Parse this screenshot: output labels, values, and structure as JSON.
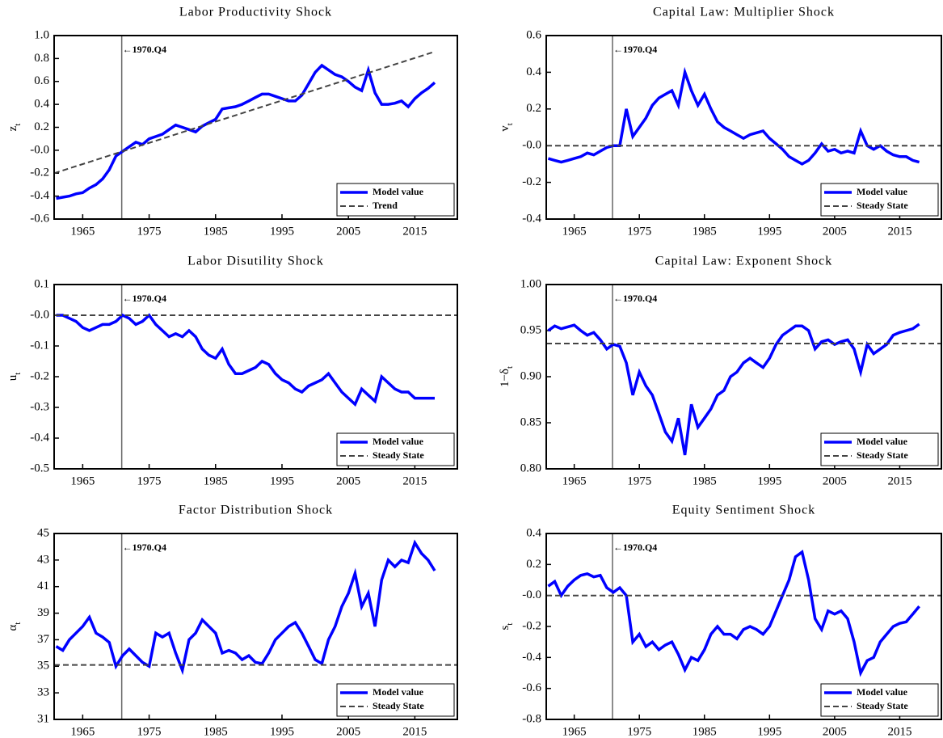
{
  "chart_data": [
    {
      "type": "line",
      "title": "Labor Productivity Shock",
      "ylabel": "z",
      "ylabel_sub": "t",
      "annotation": "←1970.Q4",
      "vline_x": 1970.875,
      "legend": "lower right",
      "xlim": [
        1960.7,
        2021.4
      ],
      "ylim": [
        -0.6,
        1.0
      ],
      "xticks": [
        1965,
        1975,
        1985,
        1995,
        2005,
        2015
      ],
      "yticks": [
        -0.6,
        -0.4,
        -0.2,
        {
          "value": 0,
          "label": "-0.0"
        },
        0.2,
        0.4,
        0.6,
        0.8,
        {
          "value": 1,
          "label": "1.0"
        }
      ],
      "series": [
        {
          "name": "Model value",
          "color": "#0000ff",
          "style": "solid",
          "x": [
            1961,
            1962,
            1963,
            1964,
            1965,
            1966,
            1967,
            1968,
            1969,
            1970,
            1971,
            1972,
            1973,
            1974,
            1975,
            1976,
            1977,
            1978,
            1979,
            1980,
            1981,
            1982,
            1983,
            1984,
            1985,
            1986,
            1987,
            1988,
            1989,
            1990,
            1991,
            1992,
            1993,
            1994,
            1995,
            1996,
            1997,
            1998,
            1999,
            2000,
            2001,
            2002,
            2003,
            2004,
            2005,
            2006,
            2007,
            2008,
            2009,
            2010,
            2011,
            2012,
            2013,
            2014,
            2015,
            2016,
            2017,
            2018
          ],
          "values": [
            -0.42,
            -0.41,
            -0.4,
            -0.38,
            -0.37,
            -0.33,
            -0.3,
            -0.25,
            -0.17,
            -0.05,
            -0.01,
            0.03,
            0.07,
            0.05,
            0.1,
            0.12,
            0.14,
            0.18,
            0.22,
            0.2,
            0.18,
            0.16,
            0.21,
            0.24,
            0.27,
            0.36,
            0.37,
            0.38,
            0.4,
            0.43,
            0.46,
            0.49,
            0.49,
            0.47,
            0.45,
            0.43,
            0.43,
            0.48,
            0.58,
            0.68,
            0.74,
            0.7,
            0.66,
            0.64,
            0.6,
            0.55,
            0.52,
            0.7,
            0.5,
            0.4,
            0.4,
            0.41,
            0.43,
            0.38,
            0.45,
            0.5,
            0.54,
            0.59
          ]
        },
        {
          "name": "Trend",
          "color": "#444444",
          "style": "dashed",
          "x": [
            1960.7,
            2018
          ],
          "values": [
            -0.2,
            0.86
          ]
        }
      ]
    },
    {
      "type": "line",
      "title": "Capital Law: Multiplier Shock",
      "ylabel": "v",
      "ylabel_sub": "t",
      "annotation": "←1970.Q4",
      "vline_x": 1970.875,
      "legend": "lower right",
      "xlim": [
        1960.7,
        2021.4
      ],
      "ylim": [
        -0.4,
        0.6
      ],
      "xticks": [
        1965,
        1975,
        1985,
        1995,
        2005,
        2015
      ],
      "yticks": [
        -0.4,
        -0.2,
        {
          "value": 0,
          "label": "-0.0"
        },
        0.2,
        0.4,
        0.6
      ],
      "series": [
        {
          "name": "Model value",
          "color": "#0000ff",
          "style": "solid",
          "x": [
            1961,
            1962,
            1963,
            1964,
            1965,
            1966,
            1967,
            1968,
            1969,
            1970,
            1971,
            1972,
            1973,
            1974,
            1975,
            1976,
            1977,
            1978,
            1979,
            1980,
            1981,
            1982,
            1983,
            1984,
            1985,
            1986,
            1987,
            1988,
            1989,
            1990,
            1991,
            1992,
            1993,
            1994,
            1995,
            1996,
            1997,
            1998,
            1999,
            2000,
            2001,
            2002,
            2003,
            2004,
            2005,
            2006,
            2007,
            2008,
            2009,
            2010,
            2011,
            2012,
            2013,
            2014,
            2015,
            2016,
            2017,
            2018
          ],
          "values": [
            -0.07,
            -0.08,
            -0.09,
            -0.08,
            -0.07,
            -0.06,
            -0.04,
            -0.05,
            -0.03,
            -0.01,
            0.0,
            0.0,
            0.2,
            0.05,
            0.1,
            0.15,
            0.22,
            0.26,
            0.28,
            0.3,
            0.22,
            0.4,
            0.3,
            0.22,
            0.28,
            0.2,
            0.13,
            0.1,
            0.08,
            0.06,
            0.04,
            0.06,
            0.07,
            0.08,
            0.04,
            0.01,
            -0.02,
            -0.06,
            -0.08,
            -0.1,
            -0.08,
            -0.04,
            0.01,
            -0.03,
            -0.02,
            -0.04,
            -0.03,
            -0.04,
            0.08,
            0.0,
            -0.02,
            0.0,
            -0.03,
            -0.05,
            -0.06,
            -0.06,
            -0.08,
            -0.09
          ]
        },
        {
          "name": "Steady State",
          "color": "#444444",
          "style": "dashed",
          "x": [
            1960.7,
            2021.4
          ],
          "values": [
            0,
            0
          ]
        }
      ]
    },
    {
      "type": "line",
      "title": "Labor Disutility Shock",
      "ylabel": "u",
      "ylabel_sub": "t",
      "annotation": "←1970.Q4",
      "vline_x": 1970.875,
      "legend": "lower right",
      "xlim": [
        1960.7,
        2021.4
      ],
      "ylim": [
        -0.5,
        0.1
      ],
      "xticks": [
        1965,
        1975,
        1985,
        1995,
        2005,
        2015
      ],
      "yticks": [
        -0.5,
        -0.4,
        -0.3,
        -0.2,
        -0.1,
        {
          "value": 0,
          "label": "-0.0"
        },
        0.1
      ],
      "series": [
        {
          "name": "Model value",
          "color": "#0000ff",
          "style": "solid",
          "x": [
            1961,
            1962,
            1963,
            1964,
            1965,
            1966,
            1967,
            1968,
            1969,
            1970,
            1971,
            1972,
            1973,
            1974,
            1975,
            1976,
            1977,
            1978,
            1979,
            1980,
            1981,
            1982,
            1983,
            1984,
            1985,
            1986,
            1987,
            1988,
            1989,
            1990,
            1991,
            1992,
            1993,
            1994,
            1995,
            1996,
            1997,
            1998,
            1999,
            2000,
            2001,
            2002,
            2003,
            2004,
            2005,
            2006,
            2007,
            2008,
            2009,
            2010,
            2011,
            2012,
            2013,
            2014,
            2015,
            2016,
            2017,
            2018
          ],
          "values": [
            0.0,
            0.0,
            -0.01,
            -0.02,
            -0.04,
            -0.05,
            -0.04,
            -0.03,
            -0.03,
            -0.02,
            0.0,
            -0.01,
            -0.03,
            -0.02,
            0.0,
            -0.03,
            -0.05,
            -0.07,
            -0.06,
            -0.07,
            -0.05,
            -0.07,
            -0.11,
            -0.13,
            -0.14,
            -0.11,
            -0.16,
            -0.19,
            -0.19,
            -0.18,
            -0.17,
            -0.15,
            -0.16,
            -0.19,
            -0.21,
            -0.22,
            -0.24,
            -0.25,
            -0.23,
            -0.22,
            -0.21,
            -0.19,
            -0.22,
            -0.25,
            -0.27,
            -0.29,
            -0.24,
            -0.26,
            -0.28,
            -0.2,
            -0.22,
            -0.24,
            -0.25,
            -0.25,
            -0.27,
            -0.27,
            -0.27,
            -0.27
          ]
        },
        {
          "name": "Steady State",
          "color": "#444444",
          "style": "dashed",
          "x": [
            1960.7,
            2021.4
          ],
          "values": [
            0,
            0
          ]
        }
      ]
    },
    {
      "type": "line",
      "title": "Capital Law: Exponent Shock",
      "ylabel": "1−δ",
      "ylabel_sub": "t",
      "annotation": "←1970.Q4",
      "vline_x": 1970.875,
      "legend": "lower right",
      "xlim": [
        1960.7,
        2021.4
      ],
      "ylim": [
        0.8,
        1.0
      ],
      "xticks": [
        1965,
        1975,
        1985,
        1995,
        2005,
        2015
      ],
      "yticks": [
        {
          "value": 0.8,
          "label": "0.80"
        },
        0.85,
        {
          "value": 0.9,
          "label": "0.90"
        },
        0.95,
        {
          "value": 1,
          "label": "1.00"
        }
      ],
      "series": [
        {
          "name": "Model value",
          "color": "#0000ff",
          "style": "solid",
          "x": [
            1961,
            1962,
            1963,
            1964,
            1965,
            1966,
            1967,
            1968,
            1969,
            1970,
            1971,
            1972,
            1973,
            1974,
            1975,
            1976,
            1977,
            1978,
            1979,
            1980,
            1981,
            1982,
            1983,
            1984,
            1985,
            1986,
            1987,
            1988,
            1989,
            1990,
            1991,
            1992,
            1993,
            1994,
            1995,
            1996,
            1997,
            1998,
            1999,
            2000,
            2001,
            2002,
            2003,
            2004,
            2005,
            2006,
            2007,
            2008,
            2009,
            2010,
            2011,
            2012,
            2013,
            2014,
            2015,
            2016,
            2017,
            2018
          ],
          "values": [
            0.95,
            0.955,
            0.952,
            0.954,
            0.956,
            0.95,
            0.945,
            0.948,
            0.94,
            0.93,
            0.935,
            0.933,
            0.915,
            0.88,
            0.905,
            0.89,
            0.88,
            0.86,
            0.84,
            0.83,
            0.855,
            0.815,
            0.87,
            0.845,
            0.855,
            0.865,
            0.88,
            0.885,
            0.9,
            0.905,
            0.915,
            0.92,
            0.915,
            0.91,
            0.92,
            0.935,
            0.945,
            0.95,
            0.955,
            0.955,
            0.95,
            0.93,
            0.938,
            0.94,
            0.935,
            0.938,
            0.94,
            0.93,
            0.905,
            0.935,
            0.925,
            0.93,
            0.935,
            0.945,
            0.948,
            0.95,
            0.952,
            0.957
          ]
        },
        {
          "name": "Steady State",
          "color": "#444444",
          "style": "dashed",
          "x": [
            1960.7,
            2021.4
          ],
          "values": [
            0.936,
            0.936
          ]
        }
      ]
    },
    {
      "type": "line",
      "title": "Factor Distribution Shock",
      "ylabel": "α",
      "ylabel_sub": "t",
      "annotation": "←1970.Q4",
      "vline_x": 1970.875,
      "legend": "lower right",
      "xlim": [
        1960.7,
        2021.4
      ],
      "ylim": [
        31,
        45
      ],
      "xticks": [
        1965,
        1975,
        1985,
        1995,
        2005,
        2015
      ],
      "yticks": [
        31,
        33,
        35,
        37,
        39,
        41,
        43,
        45
      ],
      "series": [
        {
          "name": "Model value",
          "color": "#0000ff",
          "style": "solid",
          "x": [
            1961,
            1962,
            1963,
            1964,
            1965,
            1966,
            1967,
            1968,
            1969,
            1970,
            1971,
            1972,
            1973,
            1974,
            1975,
            1976,
            1977,
            1978,
            1979,
            1980,
            1981,
            1982,
            1983,
            1984,
            1985,
            1986,
            1987,
            1988,
            1989,
            1990,
            1991,
            1992,
            1993,
            1994,
            1995,
            1996,
            1997,
            1998,
            1999,
            2000,
            2001,
            2002,
            2003,
            2004,
            2005,
            2006,
            2007,
            2008,
            2009,
            2010,
            2011,
            2012,
            2013,
            2014,
            2015,
            2016,
            2017,
            2018
          ],
          "values": [
            36.5,
            36.2,
            37.0,
            37.5,
            38.0,
            38.7,
            37.5,
            37.2,
            36.8,
            35.0,
            35.8,
            36.3,
            35.8,
            35.3,
            35.0,
            37.5,
            37.2,
            37.5,
            36.0,
            34.7,
            37.0,
            37.5,
            38.5,
            38.0,
            37.5,
            36.0,
            36.2,
            36.0,
            35.5,
            35.8,
            35.3,
            35.2,
            36.0,
            37.0,
            37.5,
            38.0,
            38.3,
            37.5,
            36.5,
            35.5,
            35.2,
            37.0,
            38.0,
            39.5,
            40.5,
            42.0,
            39.5,
            40.5,
            38.0,
            41.5,
            43.0,
            42.5,
            43.0,
            42.8,
            44.3,
            43.5,
            43.0,
            42.2
          ]
        },
        {
          "name": "Steady State",
          "color": "#444444",
          "style": "dashed",
          "x": [
            1960.7,
            2021.4
          ],
          "values": [
            35.1,
            35.1
          ]
        }
      ]
    },
    {
      "type": "line",
      "title": "Equity Sentiment Shock",
      "ylabel": "s",
      "ylabel_sub": "t",
      "annotation": "←1970.Q4",
      "vline_x": 1970.875,
      "legend": "lower right",
      "xlim": [
        1960.7,
        2021.4
      ],
      "ylim": [
        -0.8,
        0.4
      ],
      "xticks": [
        1965,
        1975,
        1985,
        1995,
        2005,
        2015
      ],
      "yticks": [
        -0.8,
        -0.6,
        -0.4,
        -0.2,
        {
          "value": 0,
          "label": "-0.0"
        },
        0.2,
        0.4
      ],
      "series": [
        {
          "name": "Model value",
          "color": "#0000ff",
          "style": "solid",
          "x": [
            1961,
            1962,
            1963,
            1964,
            1965,
            1966,
            1967,
            1968,
            1969,
            1970,
            1971,
            1972,
            1973,
            1974,
            1975,
            1976,
            1977,
            1978,
            1979,
            1980,
            1981,
            1982,
            1983,
            1984,
            1985,
            1986,
            1987,
            1988,
            1989,
            1990,
            1991,
            1992,
            1993,
            1994,
            1995,
            1996,
            1997,
            1998,
            1999,
            2000,
            2001,
            2002,
            2003,
            2004,
            2005,
            2006,
            2007,
            2008,
            2009,
            2010,
            2011,
            2012,
            2013,
            2014,
            2015,
            2016,
            2017,
            2018
          ],
          "values": [
            0.06,
            0.09,
            0.0,
            0.06,
            0.1,
            0.13,
            0.14,
            0.12,
            0.13,
            0.05,
            0.02,
            0.05,
            0.0,
            -0.3,
            -0.25,
            -0.33,
            -0.3,
            -0.35,
            -0.32,
            -0.3,
            -0.38,
            -0.48,
            -0.4,
            -0.42,
            -0.35,
            -0.25,
            -0.2,
            -0.25,
            -0.25,
            -0.28,
            -0.22,
            -0.2,
            -0.22,
            -0.25,
            -0.2,
            -0.1,
            0.0,
            0.1,
            0.25,
            0.28,
            0.1,
            -0.15,
            -0.22,
            -0.1,
            -0.12,
            -0.1,
            -0.15,
            -0.3,
            -0.5,
            -0.42,
            -0.4,
            -0.3,
            -0.25,
            -0.2,
            -0.18,
            -0.17,
            -0.12,
            -0.07
          ]
        },
        {
          "name": "Steady State",
          "color": "#444444",
          "style": "dashed",
          "x": [
            1960.7,
            2021.4
          ],
          "values": [
            0,
            0
          ]
        }
      ]
    }
  ]
}
